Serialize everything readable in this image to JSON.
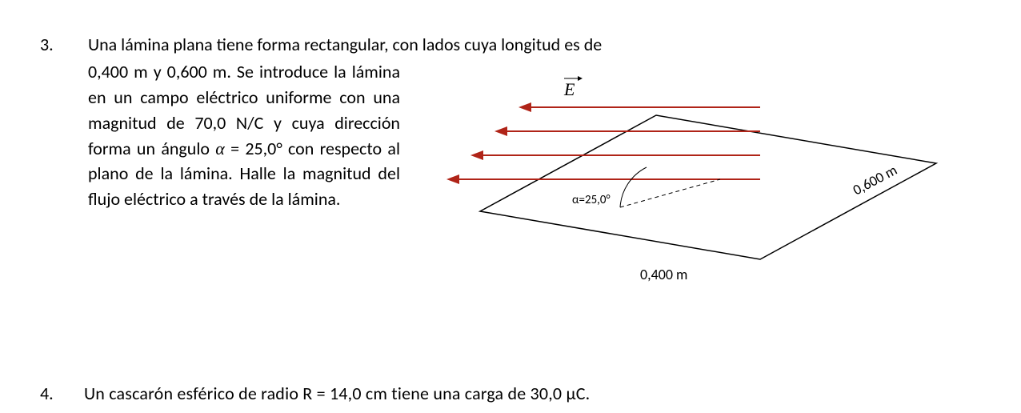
{
  "problem": {
    "number": "3.",
    "line1": "Una lámina plana tiene forma rectangular, con lados cuya longitud es de",
    "paragraph": "0,400 m y 0,600 m. Se introduce la lámina en un campo eléctrico uniforme con una magnitud de 70,0 N/C y cuya dirección forma un ángulo α = 25,0° con respecto al plano de la lámina. Halle la magnitud del flujo eléctrico a través de la lámina.",
    "alpha_symbol": "α"
  },
  "figure": {
    "E_label": "E",
    "alpha_label": "α=25,0°",
    "side_a_label": "0,400 m",
    "side_b_label": "0,600 m",
    "colors": {
      "arrow": "#b02418",
      "sheet_stroke": "#000000",
      "text": "#000000",
      "angle_arc": "#000000",
      "dash": "#000000"
    },
    "stroke_width": {
      "sheet": 1.5,
      "arrow": 2.0,
      "arc": 1.0,
      "dash": 1.0
    },
    "font_size": {
      "E": 22,
      "alpha": 15,
      "dim": 18
    }
  },
  "footer_partial": {
    "number": "4.",
    "text": "Un cascarón esférico de radio R = 14,0 cm tiene una carga de 30,0 μC."
  }
}
